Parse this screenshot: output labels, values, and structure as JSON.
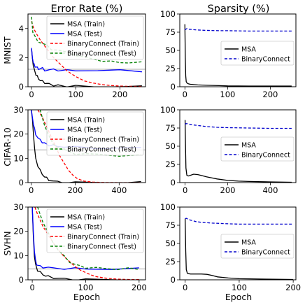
{
  "figure": {
    "col_titles": [
      "Error Rate (%)",
      "Sparsity (%)"
    ],
    "row_labels": [
      "MNIST",
      "CIFAR-10",
      "SVHN"
    ],
    "xlabel": "Epoch"
  },
  "chart_data": [
    {
      "type": "line",
      "panel": "mnist-error",
      "row": 0,
      "col": 0,
      "xlim": [
        -8,
        258
      ],
      "ylim": [
        0,
        5
      ],
      "xticks": [
        0,
        100,
        200
      ],
      "yticks": [
        0,
        2,
        4
      ],
      "hline": 1.2,
      "legend": "top-right",
      "series": [
        {
          "name": "MSA (Train)",
          "color": "#000000",
          "dash": "solid",
          "x": [
            0,
            2,
            4,
            6,
            8,
            10,
            13,
            16,
            20,
            25,
            30,
            35,
            40,
            50,
            60,
            70,
            80,
            100,
            150,
            200,
            250
          ],
          "y": [
            2.6,
            1.9,
            1.5,
            1.2,
            1.0,
            0.85,
            0.7,
            0.55,
            0.45,
            0.35,
            0.28,
            0.22,
            0.18,
            0.12,
            0.08,
            0.06,
            0.04,
            0.02,
            0.01,
            0.01,
            0.0
          ]
        },
        {
          "name": "MSA (Test)",
          "color": "#0000ff",
          "dash": "solid",
          "x": [
            0,
            2,
            4,
            6,
            8,
            10,
            13,
            16,
            20,
            25,
            30,
            40,
            50,
            60,
            80,
            100,
            150,
            200,
            250
          ],
          "y": [
            2.6,
            2.0,
            1.7,
            1.5,
            1.4,
            1.35,
            1.3,
            1.25,
            1.2,
            1.3,
            1.15,
            1.1,
            1.25,
            1.12,
            1.1,
            1.15,
            1.1,
            1.12,
            1.1
          ]
        },
        {
          "name": "BinaryConnect (Train)",
          "color": "#ff0000",
          "dash": "dashed",
          "x": [
            0,
            5,
            10,
            20,
            30,
            40,
            50,
            60,
            70,
            80,
            90,
            100,
            110,
            120,
            140,
            160,
            180,
            200,
            220,
            250
          ],
          "y": [
            4.5,
            4.0,
            3.7,
            3.2,
            2.8,
            2.4,
            2.0,
            1.7,
            1.4,
            1.1,
            0.9,
            0.7,
            0.55,
            0.4,
            0.25,
            0.15,
            0.08,
            0.05,
            0.03,
            0.02
          ]
        },
        {
          "name": "BinaryConnect (Test)",
          "color": "#008000",
          "dash": "dashed",
          "x": [
            0,
            3,
            8,
            15,
            25,
            35,
            45,
            60,
            80,
            100,
            120,
            140,
            160,
            180,
            200,
            220,
            250
          ],
          "y": [
            4.8,
            3.8,
            3.4,
            3.1,
            3.0,
            2.8,
            2.6,
            2.5,
            2.35,
            2.2,
            2.0,
            1.9,
            1.8,
            1.7,
            1.7,
            1.65,
            1.65
          ]
        }
      ]
    },
    {
      "type": "line",
      "panel": "mnist-sparsity",
      "row": 0,
      "col": 1,
      "xlim": [
        -12,
        260
      ],
      "ylim": [
        0,
        100
      ],
      "xticks": [
        0,
        100,
        200
      ],
      "yticks": [
        0,
        25,
        50,
        75,
        100
      ],
      "legend": "center-right",
      "series": [
        {
          "name": "MSA",
          "color": "#000000",
          "dash": "solid",
          "x": [
            0,
            1,
            2,
            3,
            5,
            8,
            12,
            20,
            30,
            50,
            80,
            100,
            150,
            200,
            250
          ],
          "y": [
            86,
            40,
            15,
            7,
            5,
            4,
            3.5,
            3,
            2.5,
            2,
            1.5,
            1.2,
            1,
            1,
            1
          ]
        },
        {
          "name": "BinaryConnect",
          "color": "#0000cc",
          "dash": "dashed",
          "x": [
            0,
            2,
            5,
            10,
            20,
            30,
            50,
            80,
            100,
            150,
            200,
            250
          ],
          "y": [
            78,
            79,
            80,
            79,
            78.5,
            78,
            77.5,
            77,
            77,
            76.5,
            76.5,
            76.5
          ]
        }
      ]
    },
    {
      "type": "line",
      "panel": "cifar-error",
      "row": 1,
      "col": 0,
      "xlim": [
        -15,
        520
      ],
      "ylim": [
        0,
        30
      ],
      "xticks": [
        0,
        200,
        400
      ],
      "yticks": [
        0,
        10,
        20,
        30
      ],
      "hline": 13.5,
      "legend": "top-right",
      "series": [
        {
          "name": "MSA (Train)",
          "color": "#000000",
          "dash": "solid",
          "x": [
            0,
            5,
            10,
            15,
            20,
            30,
            40,
            50,
            60,
            70,
            80,
            100,
            120,
            150,
            200,
            300,
            400,
            500
          ],
          "y": [
            30,
            26,
            20,
            14,
            10,
            7,
            5,
            3.5,
            2.5,
            1.8,
            1.2,
            0.6,
            0.3,
            0.1,
            0,
            0,
            0,
            0
          ]
        },
        {
          "name": "MSA (Test)",
          "color": "#0000ff",
          "dash": "solid",
          "x": [
            0,
            5,
            10,
            15,
            20,
            30,
            40,
            50,
            60,
            70,
            80,
            100,
            120,
            150,
            200,
            300,
            400,
            500
          ],
          "y": [
            30,
            27,
            24,
            22,
            20,
            18.5,
            17.5,
            16.8,
            16.2,
            15.8,
            15.5,
            15.2,
            15,
            14.8,
            14.5,
            14.3,
            14.2,
            14.2
          ]
        },
        {
          "name": "BinaryConnect (Train)",
          "color": "#ff0000",
          "dash": "dashed",
          "x": [
            30,
            50,
            70,
            90,
            110,
            130,
            150,
            170,
            190,
            210,
            240,
            280,
            320,
            400,
            500
          ],
          "y": [
            30,
            27,
            23,
            19,
            15,
            11,
            8,
            5,
            3,
            1.6,
            0.6,
            0.2,
            0.05,
            0,
            0
          ]
        },
        {
          "name": "BinaryConnect (Test)",
          "color": "#008000",
          "dash": "dashed",
          "x": [
            40,
            60,
            80,
            100,
            130,
            160,
            200,
            250,
            300,
            400,
            500
          ],
          "y": [
            30,
            24,
            19,
            16,
            14,
            13,
            12,
            11.8,
            11.5,
            11.3,
            11.2
          ]
        }
      ]
    },
    {
      "type": "line",
      "panel": "cifar-sparsity",
      "row": 1,
      "col": 1,
      "xlim": [
        -25,
        520
      ],
      "ylim": [
        0,
        100
      ],
      "xticks": [
        0,
        200,
        400
      ],
      "yticks": [
        0,
        25,
        50,
        75,
        100
      ],
      "legend": "center-right",
      "series": [
        {
          "name": "MSA",
          "color": "#000000",
          "dash": "solid",
          "x": [
            0,
            2,
            4,
            8,
            15,
            25,
            40,
            60,
            80,
            100,
            150,
            200,
            250,
            300,
            400,
            500
          ],
          "y": [
            86,
            50,
            20,
            10,
            9,
            10,
            11.5,
            11,
            9.5,
            8,
            5,
            3,
            2,
            1.5,
            1,
            0.5
          ]
        },
        {
          "name": "BinaryConnect",
          "color": "#0000cc",
          "dash": "dashed",
          "x": [
            0,
            3,
            10,
            30,
            60,
            100,
            150,
            200,
            300,
            400,
            500
          ],
          "y": [
            80,
            81,
            81,
            79.5,
            78.5,
            77,
            76,
            75.5,
            75,
            74.5,
            74.5
          ]
        }
      ]
    },
    {
      "type": "line",
      "panel": "svhn-error",
      "row": 2,
      "col": 0,
      "xlim": [
        -8,
        212
      ],
      "ylim": [
        0,
        30
      ],
      "xticks": [
        0,
        100,
        200
      ],
      "yticks": [
        0,
        10,
        20,
        30
      ],
      "hline": 4.5,
      "legend": "top-right",
      "series": [
        {
          "name": "MSA (Train)",
          "color": "#000000",
          "dash": "solid",
          "x": [
            0,
            2,
            4,
            6,
            8,
            10,
            15,
            20,
            25,
            30,
            40,
            50,
            60,
            80,
            100,
            150,
            200
          ],
          "y": [
            30,
            18,
            10,
            6.5,
            5,
            4,
            3,
            2.2,
            1.7,
            1.3,
            0.9,
            0.6,
            0.4,
            0.2,
            0.1,
            0,
            0
          ]
        },
        {
          "name": "MSA (Test)",
          "color": "#0000ff",
          "dash": "solid",
          "x": [
            0,
            2,
            4,
            6,
            8,
            10,
            15,
            20,
            30,
            40,
            60,
            80,
            100,
            150,
            200
          ],
          "y": [
            30,
            20,
            12,
            8,
            6.5,
            6,
            5.5,
            5.3,
            5,
            4.8,
            4.7,
            4.6,
            4.6,
            4.5,
            4.5
          ]
        },
        {
          "name": "BinaryConnect (Train)",
          "color": "#ff0000",
          "dash": "dashed",
          "x": [
            5,
            10,
            20,
            30,
            40,
            50,
            60,
            70,
            80,
            90,
            100,
            110,
            120,
            140,
            160,
            180,
            200
          ],
          "y": [
            30,
            27,
            22,
            18.5,
            15,
            12,
            9.5,
            7.5,
            5.5,
            4,
            3,
            2,
            1.3,
            0.6,
            0.3,
            0.15,
            0.1
          ]
        },
        {
          "name": "BinaryConnect (Test)",
          "color": "#008000",
          "dash": "dashed",
          "x": [
            10,
            20,
            30,
            40,
            50,
            60,
            70,
            80,
            90,
            100,
            120,
            140,
            160,
            180,
            200
          ],
          "y": [
            30,
            24,
            19,
            15,
            12,
            9.5,
            7.5,
            6.3,
            5.6,
            5.2,
            4.8,
            4.6,
            4.5,
            4.5,
            4.5
          ]
        }
      ]
    },
    {
      "type": "line",
      "panel": "svhn-sparsity",
      "row": 2,
      "col": 1,
      "xlim": [
        -10,
        205
      ],
      "ylim": [
        0,
        100
      ],
      "xticks": [
        0,
        100,
        200
      ],
      "yticks": [
        0,
        25,
        50,
        75,
        100
      ],
      "legend": "center-right",
      "series": [
        {
          "name": "MSA",
          "color": "#000000",
          "dash": "solid",
          "x": [
            0,
            1,
            2,
            4,
            6,
            10,
            20,
            30,
            40,
            50,
            60,
            80,
            100,
            150,
            200
          ],
          "y": [
            84,
            40,
            14,
            9,
            8.5,
            8,
            8,
            8,
            7.5,
            6,
            4,
            2.5,
            1.5,
            1,
            0.5
          ]
        },
        {
          "name": "BinaryConnect",
          "color": "#0000cc",
          "dash": "dashed",
          "x": [
            0,
            2,
            5,
            10,
            20,
            30,
            50,
            80,
            100,
            150,
            200
          ],
          "y": [
            84,
            84.5,
            83.5,
            82,
            80,
            79,
            78,
            77,
            76.5,
            76.5,
            76.5
          ]
        }
      ]
    }
  ]
}
